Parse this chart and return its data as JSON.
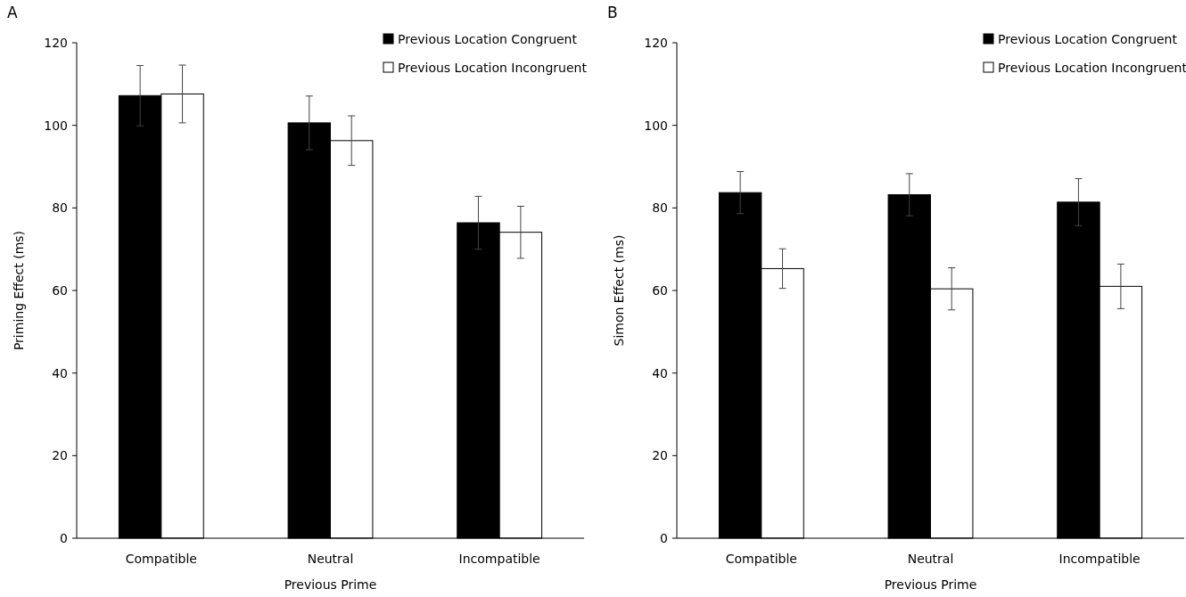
{
  "chart_data": [
    {
      "type": "bar",
      "title": "A",
      "xlabel": "Previous Prime",
      "ylabel": "Priming Effect (ms)",
      "categories": [
        "Compatible",
        "Neutral",
        "Incompatible"
      ],
      "series": [
        {
          "name": "Previous Location Congruent",
          "color": "#000000",
          "values": [
            107.2,
            100.6,
            76.4
          ],
          "errors": [
            7.3,
            6.5,
            6.4
          ]
        },
        {
          "name": "Previous Location Incongruent",
          "color": "#ffffff",
          "values": [
            107.6,
            96.3,
            74.1
          ],
          "errors": [
            7,
            6,
            6.3
          ]
        }
      ],
      "ylim": [
        0,
        120
      ],
      "yticks": [
        0,
        20,
        40,
        60,
        80,
        100,
        120
      ],
      "legend": "top right"
    },
    {
      "type": "bar",
      "title": "B",
      "xlabel": "Previous Prime",
      "ylabel": "Simon Effect (ms)",
      "categories": [
        "Compatible",
        "Neutral",
        "Incompatible"
      ],
      "series": [
        {
          "name": "Previous Location Congruent",
          "color": "#000000",
          "values": [
            83.7,
            83.2,
            81.4
          ],
          "errors": [
            5.1,
            5.1,
            5.7
          ]
        },
        {
          "name": "Previous Location Incongruent",
          "color": "#ffffff",
          "values": [
            65.3,
            60.4,
            61
          ],
          "errors": [
            4.8,
            5.1,
            5.4
          ]
        }
      ],
      "ylim": [
        0,
        120
      ],
      "yticks": [
        0,
        20,
        40,
        60,
        80,
        100,
        120
      ],
      "legend": "top right"
    }
  ]
}
